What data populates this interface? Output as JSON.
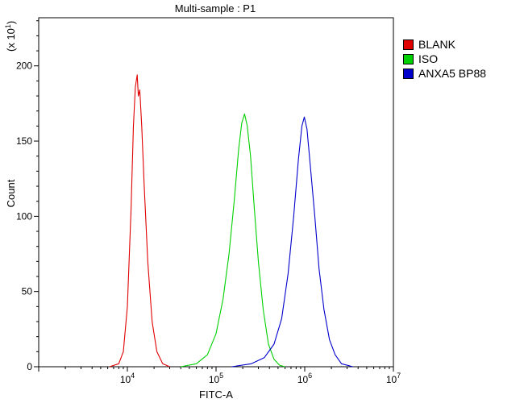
{
  "chart_data": {
    "type": "line",
    "title": "Multi-sample : P1",
    "xlabel": "FITC-A",
    "ylabel": "Count",
    "y_multiplier_label": "(x 10",
    "y_multiplier_exp": "1",
    "y_multiplier_close": ")",
    "x_scale": "log",
    "xlim": [
      1000,
      10000000
    ],
    "ylim": [
      0,
      232
    ],
    "y_ticks": [
      {
        "value": 0,
        "label": "0"
      },
      {
        "value": 50,
        "label": "50"
      },
      {
        "value": 100,
        "label": "100"
      },
      {
        "value": 150,
        "label": "150"
      },
      {
        "value": 200,
        "label": "200"
      }
    ],
    "x_ticks": [
      {
        "value": 10000,
        "base": "10",
        "exp": "4"
      },
      {
        "value": 100000,
        "base": "10",
        "exp": "5"
      },
      {
        "value": 1000000,
        "base": "10",
        "exp": "6"
      },
      {
        "value": 10000000,
        "base": "10",
        "exp": "7"
      }
    ],
    "legend_position": "right",
    "grid": false,
    "series": [
      {
        "name": "BLANK",
        "color": "#e00000",
        "points": [
          [
            6300,
            0
          ],
          [
            8000,
            2
          ],
          [
            9000,
            10
          ],
          [
            10000,
            40
          ],
          [
            11000,
            105
          ],
          [
            11700,
            160
          ],
          [
            12300,
            186
          ],
          [
            12900,
            194
          ],
          [
            13300,
            180
          ],
          [
            13800,
            184
          ],
          [
            14500,
            160
          ],
          [
            15500,
            120
          ],
          [
            17000,
            70
          ],
          [
            19000,
            30
          ],
          [
            21500,
            10
          ],
          [
            25000,
            2
          ],
          [
            30000,
            0
          ]
        ]
      },
      {
        "name": "ISO",
        "color": "#00d000",
        "points": [
          [
            40000,
            0
          ],
          [
            60000,
            2
          ],
          [
            80000,
            8
          ],
          [
            100000,
            22
          ],
          [
            120000,
            45
          ],
          [
            140000,
            75
          ],
          [
            160000,
            110
          ],
          [
            180000,
            145
          ],
          [
            195000,
            162
          ],
          [
            210000,
            168
          ],
          [
            225000,
            160
          ],
          [
            245000,
            140
          ],
          [
            270000,
            105
          ],
          [
            300000,
            70
          ],
          [
            340000,
            38
          ],
          [
            390000,
            15
          ],
          [
            450000,
            5
          ],
          [
            520000,
            1
          ],
          [
            600000,
            0
          ]
        ]
      },
      {
        "name": "ANXA5 BP88",
        "color": "#0000cc",
        "points": [
          [
            150000,
            0
          ],
          [
            250000,
            2
          ],
          [
            350000,
            6
          ],
          [
            450000,
            15
          ],
          [
            550000,
            32
          ],
          [
            650000,
            62
          ],
          [
            750000,
            100
          ],
          [
            850000,
            138
          ],
          [
            930000,
            160
          ],
          [
            990000,
            166
          ],
          [
            1060000,
            158
          ],
          [
            1150000,
            135
          ],
          [
            1300000,
            100
          ],
          [
            1450000,
            65
          ],
          [
            1650000,
            38
          ],
          [
            1900000,
            18
          ],
          [
            2200000,
            8
          ],
          [
            2600000,
            2
          ],
          [
            3500000,
            0
          ]
        ]
      }
    ]
  }
}
